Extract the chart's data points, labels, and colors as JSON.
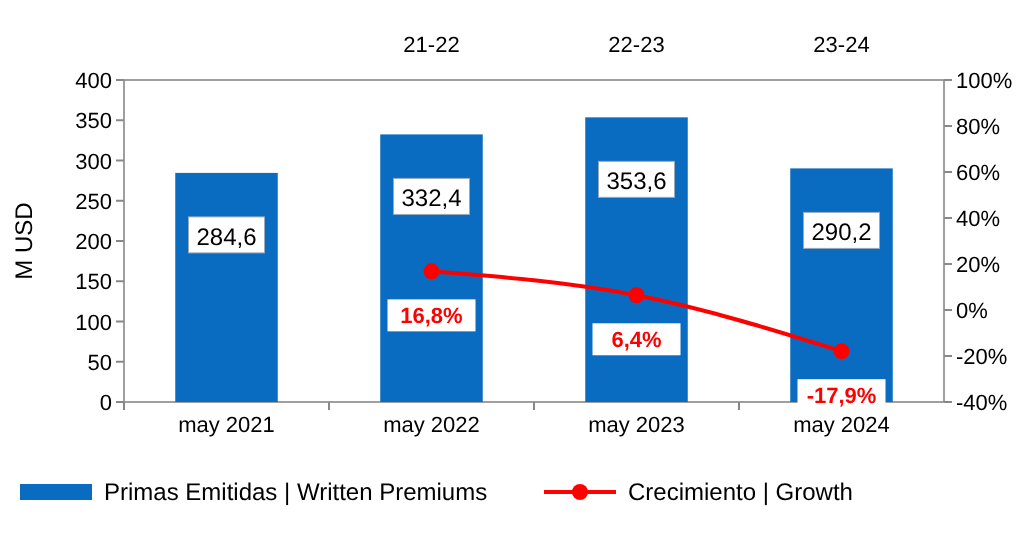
{
  "chart_data": {
    "type": "bar",
    "ylabel": "M  USD",
    "categories": [
      "may 2021",
      "may 2022",
      "may 2023",
      "may 2024"
    ],
    "series": [
      {
        "name": "Primas Emitidas | Written Premiums",
        "color": "#0a6cc0",
        "values": [
          284.6,
          332.4,
          353.6,
          290.2
        ],
        "value_labels": [
          "284,6",
          "332,4",
          "353,6",
          "290,2"
        ]
      },
      {
        "name": "Crecimiento | Growth",
        "type": "line",
        "axis": "y2",
        "color": "#ff0000",
        "values": [
          null,
          16.8,
          6.4,
          -17.9
        ],
        "value_labels": [
          null,
          "16,8%",
          "6,4%",
          "-17,9%"
        ]
      }
    ],
    "annotations": [
      "21-22",
      "22-23",
      "23-24"
    ],
    "ylim": [
      0,
      400
    ],
    "yticks": [
      0,
      50,
      100,
      150,
      200,
      250,
      300,
      350,
      400
    ],
    "y2lim": [
      -40,
      100
    ],
    "y2ticks": [
      {
        "value": -40,
        "label": "-40%"
      },
      {
        "value": -20,
        "label": "-20%"
      },
      {
        "value": 0,
        "label": "0%"
      },
      {
        "value": 20,
        "label": "20%"
      },
      {
        "value": 40,
        "label": "40%"
      },
      {
        "value": 60,
        "label": "60%"
      },
      {
        "value": 80,
        "label": "80%"
      },
      {
        "value": 100,
        "label": "100%"
      }
    ],
    "marker": "circle",
    "legend": "bottom",
    "grid": false
  }
}
